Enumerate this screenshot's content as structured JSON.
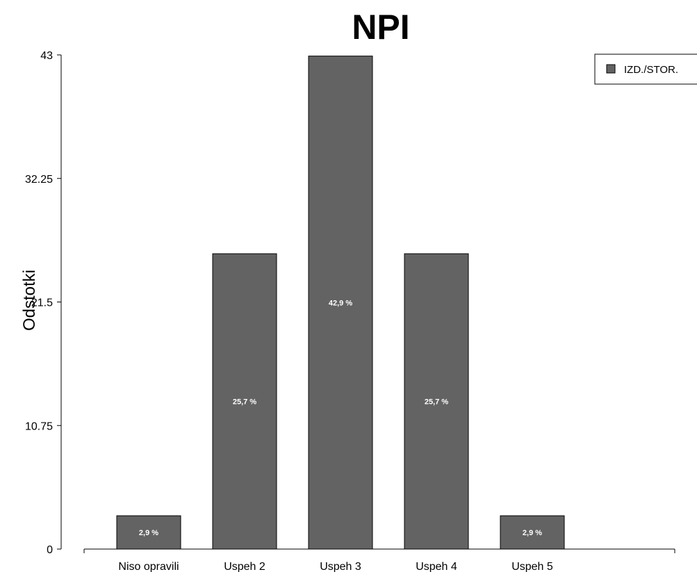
{
  "chart_data": {
    "type": "bar",
    "title": "NPI",
    "xlabel": "",
    "ylabel": "Odstotki",
    "ylim": [
      0,
      43
    ],
    "yticks": [
      "0",
      "10.75",
      "21.5",
      "32.25",
      "43"
    ],
    "categories": [
      "Niso opravili",
      "Uspeh 2",
      "Uspeh 3",
      "Uspeh 4",
      "Uspeh 5"
    ],
    "series": [
      {
        "name": "IZD./STOR.",
        "values": [
          2.9,
          25.7,
          42.9,
          25.7,
          2.9
        ],
        "labels": [
          "2,9 %",
          "25,7 %",
          "42,9 %",
          "25,7 %",
          "2,9 %"
        ],
        "color": "#636363"
      }
    ],
    "grid": false,
    "legend_position": "top-right"
  }
}
